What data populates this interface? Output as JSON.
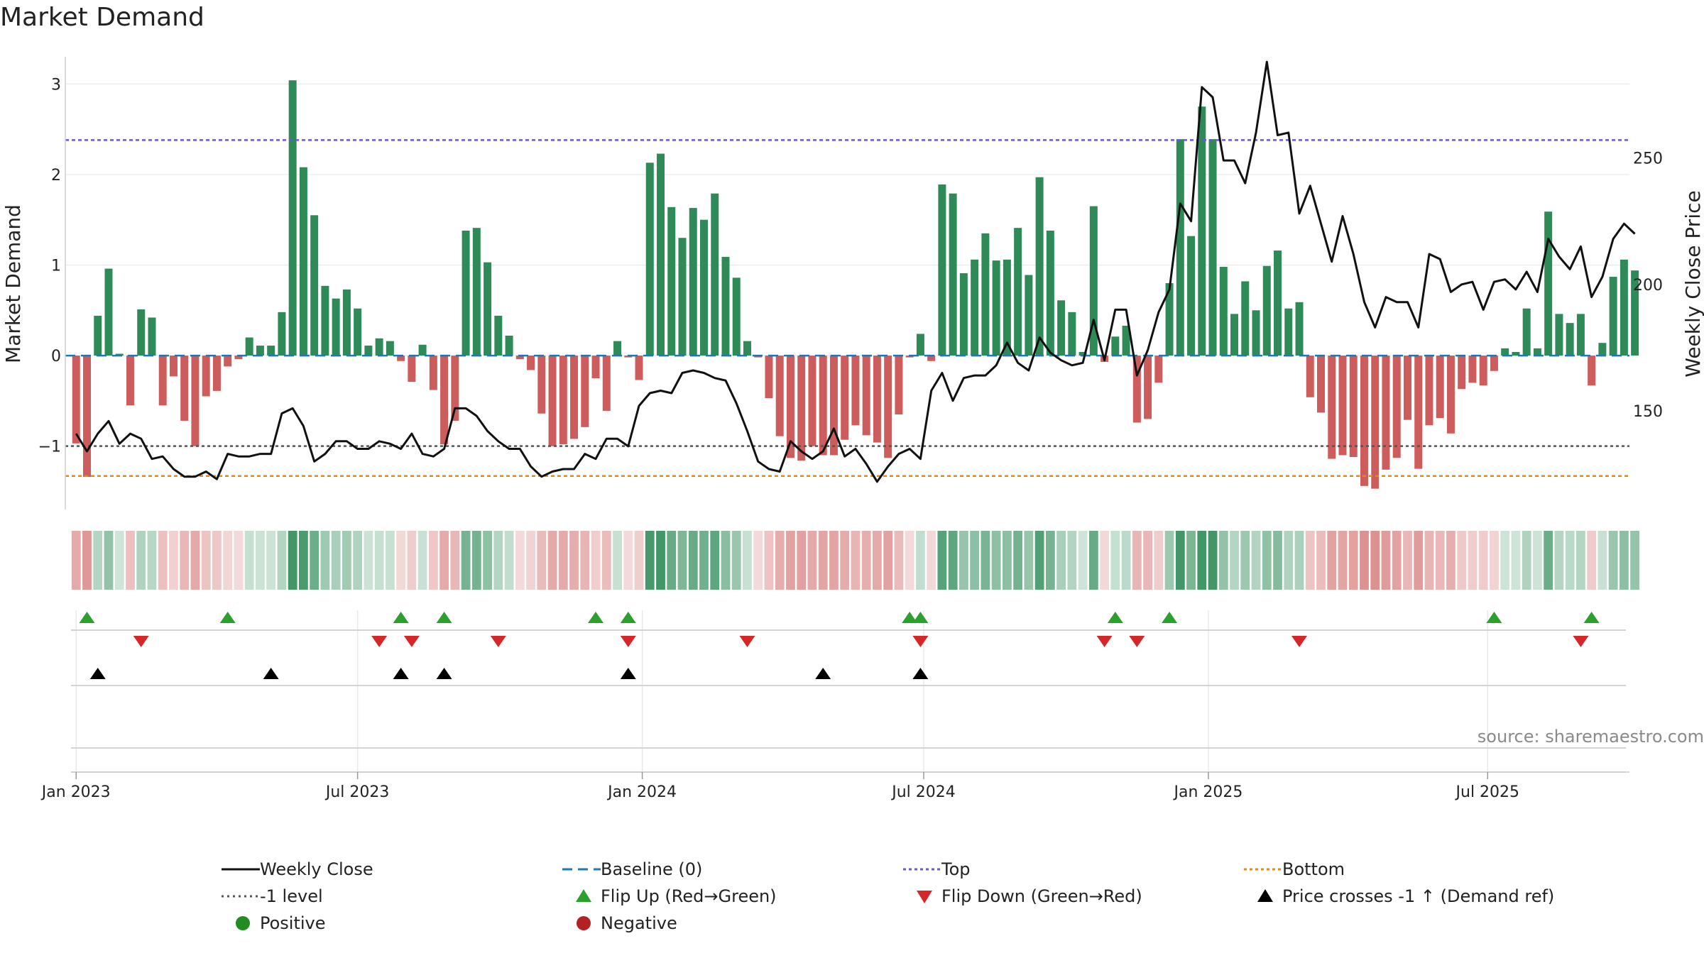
{
  "title": "Market Demand",
  "source": "source: sharemaestro.com",
  "colors": {
    "positive": "#2e8b57",
    "negative": "#cd5c5c",
    "price": "#111111",
    "baseline": "#1f77b4",
    "top": "#6a5acd",
    "bottom": "#e08a1e",
    "level": "#555555",
    "flip_up": "#2ca02c",
    "flip_down": "#d62728",
    "cross": "#000000",
    "legend_positive": "#228b22",
    "legend_negative": "#b22222"
  },
  "chart_data": {
    "type": "bar",
    "title": "Market Demand",
    "ylabel": "Market Demand",
    "y2label": "Weekly Close Price",
    "ylim": [
      -1.7,
      3.3
    ],
    "y2lim": [
      111,
      290
    ],
    "yticks": [
      -1,
      0,
      1,
      2,
      3
    ],
    "y2ticks": [
      150,
      200,
      250
    ],
    "xticks": [
      {
        "label": "Jan 2023",
        "week": 0
      },
      {
        "label": "Jul 2023",
        "week": 26
      },
      {
        "label": "Jan 2024",
        "week": 52.3
      },
      {
        "label": "Jul 2024",
        "week": 78.3
      },
      {
        "label": "Jan 2025",
        "week": 104.6
      },
      {
        "label": "Jul 2025",
        "week": 130.4
      }
    ],
    "week_range": [
      -1,
      143.5
    ],
    "top_level": 2.38,
    "bottom_level": -1.33,
    "minus1_level": -1,
    "series": [
      {
        "name": "Market Demand",
        "values": [
          -0.97,
          -1.34,
          0.44,
          0.96,
          0.02,
          -0.55,
          0.51,
          0.42,
          -0.55,
          -0.23,
          -0.72,
          -1.0,
          -0.45,
          -0.39,
          -0.12,
          -0.04,
          0.2,
          0.11,
          0.11,
          0.48,
          3.04,
          2.08,
          1.55,
          0.77,
          0.63,
          0.73,
          0.52,
          0.11,
          0.19,
          0.16,
          -0.06,
          -0.29,
          0.12,
          -0.38,
          -0.98,
          -0.72,
          1.38,
          1.41,
          1.03,
          0.44,
          0.22,
          -0.04,
          -0.16,
          -0.64,
          -1.0,
          -0.98,
          -0.92,
          -0.79,
          -0.25,
          -0.61,
          0.16,
          -0.02,
          -0.27,
          2.13,
          2.23,
          1.64,
          1.3,
          1.63,
          1.5,
          1.79,
          1.09,
          0.86,
          0.16,
          -0.02,
          -0.47,
          -0.89,
          -1.13,
          -1.16,
          -1.0,
          -1.1,
          -1.1,
          -0.93,
          -0.77,
          -0.88,
          -0.96,
          -1.13,
          -0.65,
          -0.02,
          0.24,
          -0.06,
          1.89,
          1.79,
          0.91,
          1.06,
          1.35,
          1.05,
          1.06,
          1.41,
          0.89,
          1.97,
          1.38,
          0.61,
          0.48,
          0.04,
          1.65,
          -0.07,
          0.21,
          0.33,
          -0.74,
          -0.7,
          -0.3,
          0.8,
          2.39,
          1.32,
          2.75,
          2.39,
          0.98,
          0.46,
          0.82,
          0.5,
          0.99,
          1.16,
          0.52,
          0.59,
          -0.46,
          -0.63,
          -1.14,
          -1.1,
          -1.12,
          -1.44,
          -1.47,
          -1.26,
          -1.13,
          -0.71,
          -1.25,
          -0.77,
          -0.69,
          -0.86,
          -0.37,
          -0.3,
          -0.33,
          -0.17,
          0.08,
          0.04,
          0.52,
          0.08,
          1.59,
          0.46,
          0.36,
          0.46,
          -0.33,
          0.14,
          0.87,
          1.06,
          0.94
        ]
      },
      {
        "name": "Weekly Close",
        "values": [
          141,
          134,
          141,
          146,
          137,
          141,
          139,
          131,
          132,
          127,
          124,
          124,
          126,
          123,
          133,
          132,
          132,
          133,
          133,
          149,
          151,
          144,
          130,
          133,
          138,
          138,
          135,
          135,
          138,
          137,
          135,
          141,
          133,
          132,
          135,
          151,
          151,
          148,
          142,
          138,
          135,
          135,
          128,
          124,
          126,
          127,
          127,
          133,
          131,
          139,
          139,
          136,
          152,
          157,
          158,
          157,
          165,
          166,
          165,
          163,
          162,
          153,
          142,
          130,
          127,
          126,
          138,
          134,
          131,
          134,
          143,
          132,
          135,
          129,
          122,
          128,
          133,
          135,
          131,
          158,
          165,
          154,
          163,
          164,
          164,
          168,
          177,
          169,
          166,
          179,
          173,
          170,
          168,
          169,
          186,
          170,
          190,
          190,
          164,
          174,
          189,
          198,
          232,
          225,
          278,
          274,
          249,
          249,
          240,
          260,
          288,
          259,
          260,
          228,
          239,
          224,
          209,
          227,
          212,
          193,
          183,
          195,
          193,
          193,
          183,
          212,
          210,
          197,
          200,
          201,
          190,
          201,
          202,
          198,
          205,
          197,
          218,
          211,
          206,
          215,
          195,
          203,
          218,
          224,
          220
        ]
      }
    ],
    "flip_up_weeks": [
      1,
      14,
      30,
      34,
      48,
      51,
      77,
      78,
      96,
      101,
      131,
      140
    ],
    "flip_down_weeks": [
      6,
      28,
      31,
      39,
      51,
      62,
      78,
      95,
      98,
      113,
      139
    ],
    "cross_weeks": [
      2,
      18,
      30,
      34,
      51,
      69,
      78
    ],
    "legend": [
      "Weekly Close",
      "-1 level",
      "Positive",
      "Baseline (0)",
      "Flip Up (Red→Green)",
      "Negative",
      "Top",
      "Flip Down (Green→Red)",
      "Bottom",
      "Price crosses -1 ↑ (Demand ref)"
    ]
  },
  "legend_labels": {
    "weekly_close": "Weekly Close",
    "minus1_level": "-1 level",
    "positive": "Positive",
    "baseline": "Baseline (0)",
    "flip_up": "Flip Up (Red→Green)",
    "negative": "Negative",
    "top": "Top",
    "flip_down": "Flip Down (Green→Red)",
    "bottom": "Bottom",
    "cross": "Price crosses -1 ↑ (Demand ref)"
  }
}
